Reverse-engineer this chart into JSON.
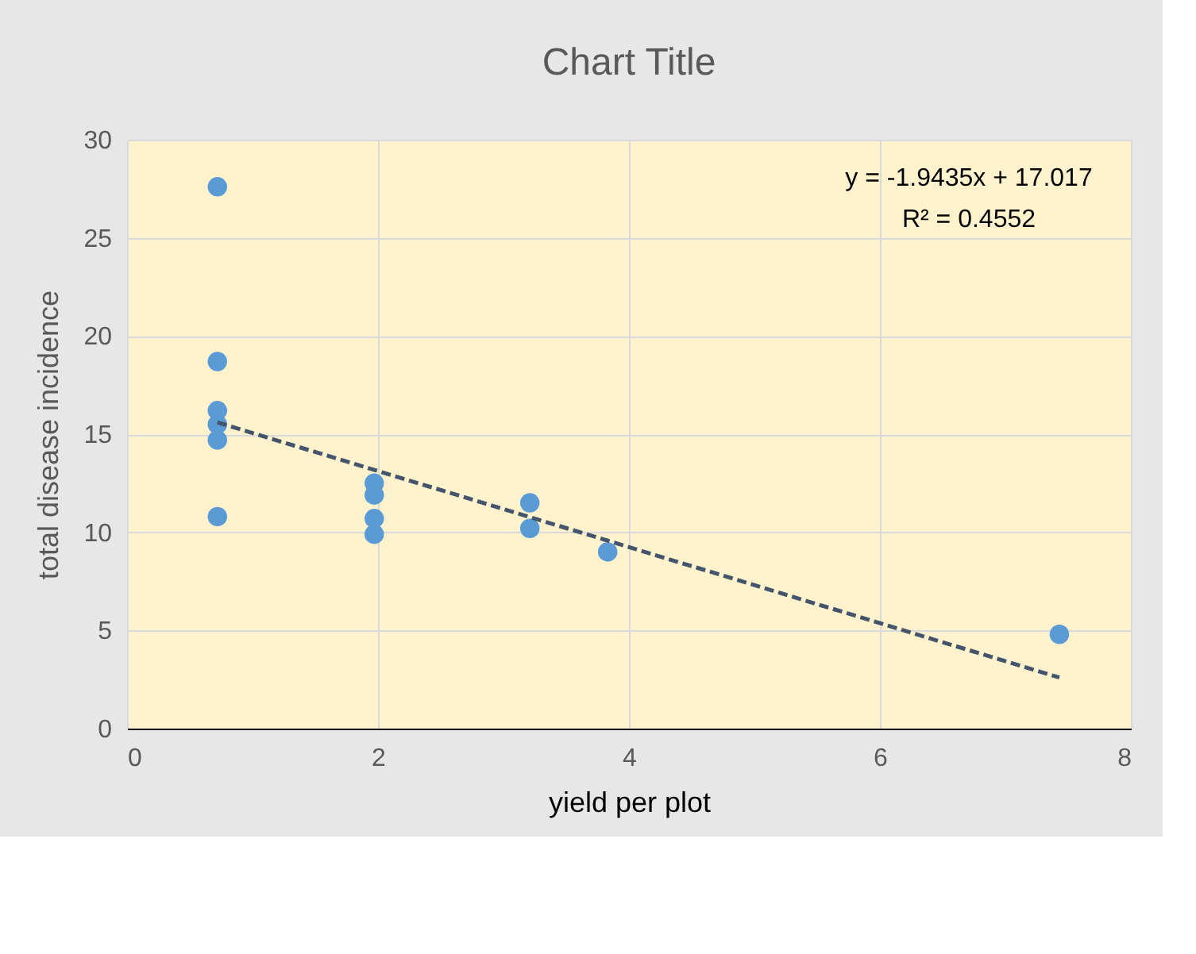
{
  "chart_data": {
    "type": "scatter",
    "title": "Chart Title",
    "xlabel": "yield per plot",
    "ylabel": "total disease incidence",
    "xlim": [
      0,
      8
    ],
    "xticks": [
      0,
      2,
      4,
      6,
      8
    ],
    "ylim": [
      0,
      30
    ],
    "yticks": [
      0,
      5,
      10,
      15,
      20,
      25,
      30
    ],
    "grid": true,
    "marker": "circle",
    "series": [
      {
        "color": "#5b9bd5",
        "x": [
          0.72,
          0.72,
          0.72,
          0.72,
          0.72,
          0.72,
          1.97,
          1.97,
          1.97,
          1.97,
          3.21,
          3.21,
          3.83,
          7.43
        ],
        "values": [
          27.6,
          18.7,
          16.2,
          15.5,
          14.7,
          10.8,
          12.5,
          11.9,
          10.7,
          9.9,
          11.5,
          10.2,
          9.0,
          4.8
        ]
      },
      {
        "type": "line",
        "color": "#44546a",
        "line_style": "dashed",
        "marker": "none",
        "x": [
          0.72,
          7.43
        ],
        "values": [
          15.6,
          2.6
        ]
      }
    ],
    "annotations": [
      "y = -1.9435x + 17.017",
      "R² = 0.4552"
    ]
  }
}
